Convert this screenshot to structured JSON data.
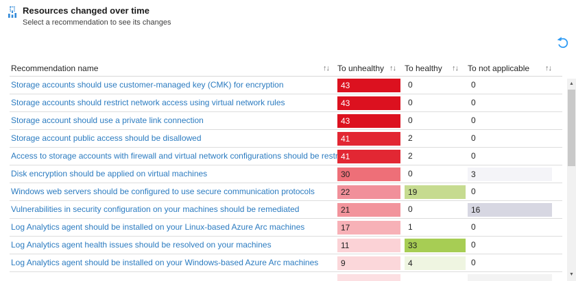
{
  "header": {
    "title": "Resources changed over time",
    "subtitle": "Select a recommendation to see its changes"
  },
  "colors": {
    "link": "#2b7bc0",
    "icon_blue": "#2f88d8",
    "undo_blue": "#2f9bf4"
  },
  "scrollbar": {
    "up_glyph": "▲",
    "down_glyph": "▼"
  },
  "table": {
    "sort_glyph": "↑↓",
    "columns": [
      {
        "label": "Recommendation name"
      },
      {
        "label": "To unhealthy"
      },
      {
        "label": "To healthy"
      },
      {
        "label": "To not applicable"
      }
    ],
    "rows": [
      {
        "name": "Storage accounts should use customer-managed key (CMK) for encryption",
        "to_unhealthy": {
          "value": "43",
          "bg": "#dc111f",
          "fg": "#ffffff"
        },
        "to_healthy": {
          "value": "0"
        },
        "to_not_applicable": {
          "value": "0"
        }
      },
      {
        "name": "Storage accounts should restrict network access using virtual network rules",
        "to_unhealthy": {
          "value": "43",
          "bg": "#dc111f",
          "fg": "#ffffff"
        },
        "to_healthy": {
          "value": "0"
        },
        "to_not_applicable": {
          "value": "0"
        }
      },
      {
        "name": "Storage account should use a private link connection",
        "to_unhealthy": {
          "value": "43",
          "bg": "#dc111f",
          "fg": "#ffffff"
        },
        "to_healthy": {
          "value": "0"
        },
        "to_not_applicable": {
          "value": "0"
        }
      },
      {
        "name": "Storage account public access should be disallowed",
        "to_unhealthy": {
          "value": "41",
          "bg": "#e22733",
          "fg": "#ffffff"
        },
        "to_healthy": {
          "value": "2"
        },
        "to_not_applicable": {
          "value": "0"
        }
      },
      {
        "name": "Access to storage accounts with firewall and virtual network configurations should be restricted",
        "to_unhealthy": {
          "value": "41",
          "bg": "#e22733",
          "fg": "#ffffff"
        },
        "to_healthy": {
          "value": "2"
        },
        "to_not_applicable": {
          "value": "0"
        }
      },
      {
        "name": "Disk encryption should be applied on virtual machines",
        "to_unhealthy": {
          "value": "30",
          "bg": "#ee6f78"
        },
        "to_healthy": {
          "value": "0"
        },
        "to_not_applicable": {
          "value": "3",
          "bg": "#f4f4f8"
        }
      },
      {
        "name": "Windows web servers should be configured to use secure communication protocols",
        "to_unhealthy": {
          "value": "22",
          "bg": "#f1909a"
        },
        "to_healthy": {
          "value": "19",
          "bg": "#c6db90"
        },
        "to_not_applicable": {
          "value": "0"
        }
      },
      {
        "name": "Vulnerabilities in security configuration on your machines should be remediated",
        "to_unhealthy": {
          "value": "21",
          "bg": "#f2949c"
        },
        "to_healthy": {
          "value": "0"
        },
        "to_not_applicable": {
          "value": "16",
          "bg": "#d7d7e2"
        }
      },
      {
        "name": "Log Analytics agent should be installed on your Linux-based Azure Arc machines",
        "to_unhealthy": {
          "value": "17",
          "bg": "#f7b1b7"
        },
        "to_healthy": {
          "value": "1"
        },
        "to_not_applicable": {
          "value": "0"
        }
      },
      {
        "name": "Log Analytics agent health issues should be resolved on your machines",
        "to_unhealthy": {
          "value": "11",
          "bg": "#fbd2d6"
        },
        "to_healthy": {
          "value": "33",
          "bg": "#a7cd54"
        },
        "to_not_applicable": {
          "value": "0"
        }
      },
      {
        "name": "Log Analytics agent should be installed on your Windows-based Azure Arc machines",
        "to_unhealthy": {
          "value": "9",
          "bg": "#fbd7da"
        },
        "to_healthy": {
          "value": "4",
          "bg": "#eff5e1"
        },
        "to_not_applicable": {
          "value": "0"
        }
      },
      {
        "name": "",
        "partial": true,
        "to_unhealthy": {
          "value": "",
          "bg": "#fcdfe2"
        },
        "to_healthy": {
          "value": ""
        },
        "to_not_applicable": {
          "value": "",
          "bg": "#f3f3f3"
        }
      }
    ]
  }
}
